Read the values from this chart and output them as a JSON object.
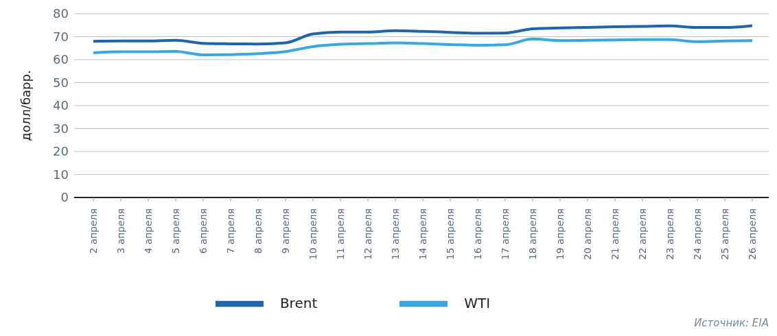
{
  "chart_data": {
    "type": "line",
    "ylabel": "долл/барр.",
    "categories": [
      "2 апреля",
      "3 апреля",
      "4 апреля",
      "5 апреля",
      "6 апреля",
      "7 апреля",
      "8 апреля",
      "9 апреля",
      "10 апреля",
      "11 апреля",
      "12 апреля",
      "13 апреля",
      "14 апреля",
      "15 апреля",
      "16 апреля",
      "17 апреля",
      "18 апреля",
      "19 апреля",
      "20 апреля",
      "21 апреля",
      "22 апреля",
      "23 апреля",
      "24 апреля",
      "25 апреля",
      "26 апреля"
    ],
    "series": [
      {
        "name": "Brent",
        "color": "#1f65ad",
        "values": [
          68.0,
          68.1,
          68.1,
          68.4,
          67.1,
          66.9,
          66.8,
          67.3,
          71.2,
          72.0,
          72.0,
          72.6,
          72.3,
          71.9,
          71.5,
          71.6,
          73.4,
          73.8,
          74.0,
          74.3,
          74.5,
          74.7,
          74.0,
          74.0,
          74.8
        ]
      },
      {
        "name": "WTI",
        "color": "#3aa8e0",
        "values": [
          63.0,
          63.4,
          63.4,
          63.6,
          62.1,
          62.2,
          62.6,
          63.5,
          65.7,
          66.7,
          67.0,
          67.3,
          67.0,
          66.6,
          66.3,
          66.5,
          69.0,
          68.3,
          68.4,
          68.6,
          68.7,
          68.7,
          67.8,
          68.1,
          68.3
        ]
      }
    ],
    "ylim": [
      0,
      80
    ],
    "yticks": [
      0,
      10,
      20,
      30,
      40,
      50,
      60,
      70,
      80
    ],
    "grid": "y",
    "legend": "bottom",
    "marker": "none",
    "line_style": "solid",
    "annotations": [
      "Источник: EIA"
    ]
  }
}
